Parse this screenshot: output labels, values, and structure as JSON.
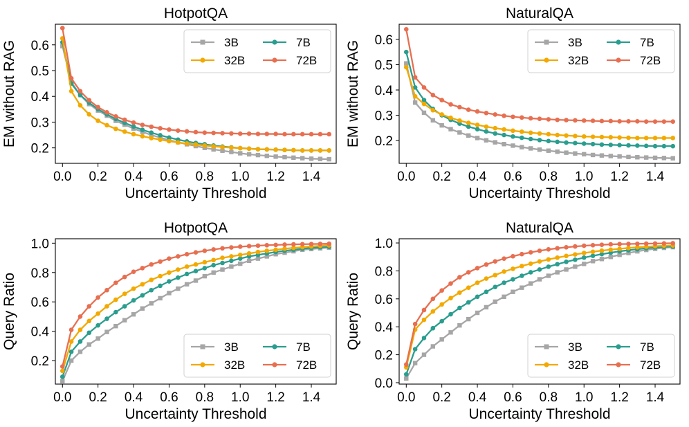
{
  "colors": {
    "3B": "#a6a6a6",
    "7B": "#2a9d8f",
    "32B": "#f2a900",
    "72B": "#e76f51"
  },
  "chart_data": [
    {
      "type": "line",
      "title": "HotpotQA",
      "xlabel": "Uncertainty Threshold",
      "ylabel": "EM without RAG",
      "xlim": [
        -0.04,
        1.54
      ],
      "ylim": [
        0.14,
        0.68
      ],
      "xticks": [
        "0.0",
        "0.2",
        "0.4",
        "0.6",
        "0.8",
        "1.0",
        "1.2",
        "1.4"
      ],
      "yticks": [
        "0.2",
        "0.3",
        "0.4",
        "0.5",
        "0.6"
      ],
      "legend": "top-right",
      "x": [
        0,
        0.05,
        0.1,
        0.15,
        0.2,
        0.25,
        0.3,
        0.35,
        0.4,
        0.45,
        0.5,
        0.55,
        0.6,
        0.65,
        0.7,
        0.75,
        0.8,
        0.85,
        0.9,
        0.95,
        1.0,
        1.05,
        1.1,
        1.15,
        1.2,
        1.25,
        1.3,
        1.35,
        1.4,
        1.45,
        1.5
      ],
      "series": [
        {
          "name": "3B",
          "marker": "square",
          "values": [
            0.595,
            0.455,
            0.405,
            0.37,
            0.345,
            0.325,
            0.305,
            0.29,
            0.275,
            0.262,
            0.25,
            0.24,
            0.23,
            0.222,
            0.214,
            0.207,
            0.2,
            0.194,
            0.189,
            0.184,
            0.179,
            0.175,
            0.172,
            0.169,
            0.166,
            0.164,
            0.162,
            0.16,
            0.158,
            0.157,
            0.156
          ]
        },
        {
          "name": "7B",
          "marker": "circle",
          "values": [
            0.61,
            0.45,
            0.405,
            0.375,
            0.35,
            0.33,
            0.312,
            0.297,
            0.283,
            0.27,
            0.259,
            0.249,
            0.24,
            0.232,
            0.225,
            0.219,
            0.214,
            0.209,
            0.205,
            0.202,
            0.199,
            0.197,
            0.195,
            0.194,
            0.193,
            0.192,
            0.191,
            0.19,
            0.19,
            0.19,
            0.19
          ]
        },
        {
          "name": "32B",
          "marker": "circle",
          "values": [
            0.625,
            0.42,
            0.365,
            0.33,
            0.305,
            0.288,
            0.274,
            0.263,
            0.253,
            0.245,
            0.238,
            0.232,
            0.226,
            0.221,
            0.217,
            0.213,
            0.209,
            0.206,
            0.203,
            0.201,
            0.199,
            0.197,
            0.195,
            0.194,
            0.193,
            0.192,
            0.191,
            0.19,
            0.19,
            0.19,
            0.19
          ]
        },
        {
          "name": "72B",
          "marker": "circle",
          "values": [
            0.665,
            0.47,
            0.42,
            0.385,
            0.358,
            0.338,
            0.322,
            0.309,
            0.298,
            0.289,
            0.282,
            0.276,
            0.271,
            0.267,
            0.264,
            0.261,
            0.259,
            0.258,
            0.257,
            0.256,
            0.255,
            0.255,
            0.254,
            0.254,
            0.254,
            0.253,
            0.253,
            0.253,
            0.253,
            0.253,
            0.253
          ]
        }
      ]
    },
    {
      "type": "line",
      "title": "NaturalQA",
      "xlabel": "Uncertainty Threshold",
      "ylabel": "EM without RAG",
      "xlim": [
        -0.04,
        1.54
      ],
      "ylim": [
        0.11,
        0.66
      ],
      "xticks": [
        "0.0",
        "0.2",
        "0.4",
        "0.6",
        "0.8",
        "1.0",
        "1.2",
        "1.4"
      ],
      "yticks": [
        "0.2",
        "0.3",
        "0.4",
        "0.5",
        "0.6"
      ],
      "legend": "top-right",
      "x": [
        0,
        0.05,
        0.1,
        0.15,
        0.2,
        0.25,
        0.3,
        0.35,
        0.4,
        0.45,
        0.5,
        0.55,
        0.6,
        0.65,
        0.7,
        0.75,
        0.8,
        0.85,
        0.9,
        0.95,
        1.0,
        1.05,
        1.1,
        1.15,
        1.2,
        1.25,
        1.3,
        1.35,
        1.4,
        1.45,
        1.5
      ],
      "series": [
        {
          "name": "3B",
          "marker": "square",
          "values": [
            0.505,
            0.35,
            0.31,
            0.28,
            0.26,
            0.245,
            0.232,
            0.22,
            0.21,
            0.201,
            0.193,
            0.186,
            0.18,
            0.174,
            0.169,
            0.164,
            0.16,
            0.156,
            0.152,
            0.149,
            0.146,
            0.143,
            0.141,
            0.139,
            0.137,
            0.135,
            0.134,
            0.133,
            0.132,
            0.131,
            0.13
          ]
        },
        {
          "name": "7B",
          "marker": "circle",
          "values": [
            0.55,
            0.41,
            0.36,
            0.325,
            0.3,
            0.282,
            0.267,
            0.255,
            0.245,
            0.236,
            0.228,
            0.222,
            0.216,
            0.211,
            0.206,
            0.202,
            0.198,
            0.195,
            0.192,
            0.19,
            0.188,
            0.186,
            0.184,
            0.183,
            0.182,
            0.181,
            0.18,
            0.179,
            0.178,
            0.178,
            0.178
          ]
        },
        {
          "name": "32B",
          "marker": "circle",
          "values": [
            0.49,
            0.375,
            0.345,
            0.32,
            0.303,
            0.29,
            0.279,
            0.27,
            0.262,
            0.255,
            0.249,
            0.244,
            0.239,
            0.235,
            0.231,
            0.228,
            0.225,
            0.222,
            0.22,
            0.218,
            0.216,
            0.215,
            0.214,
            0.213,
            0.212,
            0.211,
            0.21,
            0.21,
            0.21,
            0.21,
            0.21
          ]
        },
        {
          "name": "72B",
          "marker": "circle",
          "values": [
            0.64,
            0.45,
            0.41,
            0.38,
            0.36,
            0.343,
            0.332,
            0.322,
            0.315,
            0.309,
            0.303,
            0.298,
            0.294,
            0.291,
            0.288,
            0.286,
            0.284,
            0.282,
            0.281,
            0.28,
            0.279,
            0.278,
            0.277,
            0.277,
            0.276,
            0.276,
            0.276,
            0.275,
            0.275,
            0.275,
            0.275
          ]
        }
      ]
    },
    {
      "type": "line",
      "title": "HotpotQA",
      "xlabel": "Uncertainty Threshold",
      "ylabel": "Query Ratio",
      "xlim": [
        -0.04,
        1.54
      ],
      "ylim": [
        0.04,
        1.03
      ],
      "xticks": [
        "0.0",
        "0.2",
        "0.4",
        "0.6",
        "0.8",
        "1.0",
        "1.2",
        "1.4"
      ],
      "yticks": [
        "0.2",
        "0.4",
        "0.6",
        "0.8",
        "1.0"
      ],
      "legend": "bottom-right",
      "x": [
        0,
        0.05,
        0.1,
        0.15,
        0.2,
        0.25,
        0.3,
        0.35,
        0.4,
        0.45,
        0.5,
        0.55,
        0.6,
        0.65,
        0.7,
        0.75,
        0.8,
        0.85,
        0.9,
        0.95,
        1.0,
        1.05,
        1.1,
        1.15,
        1.2,
        1.25,
        1.3,
        1.35,
        1.4,
        1.45,
        1.5
      ],
      "series": [
        {
          "name": "3B",
          "marker": "square",
          "values": [
            0.06,
            0.2,
            0.26,
            0.31,
            0.35,
            0.395,
            0.435,
            0.475,
            0.515,
            0.555,
            0.59,
            0.625,
            0.66,
            0.69,
            0.72,
            0.745,
            0.775,
            0.8,
            0.82,
            0.84,
            0.86,
            0.88,
            0.895,
            0.91,
            0.925,
            0.935,
            0.945,
            0.955,
            0.96,
            0.965,
            0.97
          ]
        },
        {
          "name": "7B",
          "marker": "circle",
          "values": [
            0.09,
            0.26,
            0.33,
            0.39,
            0.44,
            0.485,
            0.53,
            0.57,
            0.61,
            0.645,
            0.68,
            0.71,
            0.74,
            0.765,
            0.79,
            0.81,
            0.83,
            0.85,
            0.865,
            0.88,
            0.895,
            0.91,
            0.92,
            0.93,
            0.94,
            0.948,
            0.955,
            0.962,
            0.968,
            0.972,
            0.975
          ]
        },
        {
          "name": "32B",
          "marker": "circle",
          "values": [
            0.13,
            0.33,
            0.41,
            0.47,
            0.52,
            0.57,
            0.615,
            0.655,
            0.69,
            0.72,
            0.75,
            0.775,
            0.8,
            0.82,
            0.84,
            0.855,
            0.87,
            0.885,
            0.9,
            0.91,
            0.92,
            0.93,
            0.94,
            0.948,
            0.955,
            0.962,
            0.968,
            0.973,
            0.978,
            0.982,
            0.985
          ]
        },
        {
          "name": "72B",
          "marker": "circle",
          "values": [
            0.16,
            0.41,
            0.5,
            0.57,
            0.63,
            0.68,
            0.73,
            0.77,
            0.805,
            0.83,
            0.855,
            0.875,
            0.895,
            0.91,
            0.925,
            0.937,
            0.948,
            0.957,
            0.965,
            0.971,
            0.976,
            0.98,
            0.983,
            0.986,
            0.988,
            0.99,
            0.992,
            0.993,
            0.994,
            0.995,
            0.996
          ]
        }
      ]
    },
    {
      "type": "line",
      "title": "NaturalQA",
      "xlabel": "Uncertainty Threshold",
      "ylabel": "Query Ratio",
      "xlim": [
        -0.04,
        1.54
      ],
      "ylim": [
        -0.01,
        1.03
      ],
      "xticks": [
        "0.0",
        "0.2",
        "0.4",
        "0.6",
        "0.8",
        "1.0",
        "1.2",
        "1.4"
      ],
      "yticks": [
        "0.0",
        "0.2",
        "0.4",
        "0.6",
        "0.8",
        "1.0"
      ],
      "legend": "bottom-right",
      "x": [
        0,
        0.05,
        0.1,
        0.15,
        0.2,
        0.25,
        0.3,
        0.35,
        0.4,
        0.45,
        0.5,
        0.55,
        0.6,
        0.65,
        0.7,
        0.75,
        0.8,
        0.85,
        0.9,
        0.95,
        1.0,
        1.05,
        1.1,
        1.15,
        1.2,
        1.25,
        1.3,
        1.35,
        1.4,
        1.45,
        1.5
      ],
      "series": [
        {
          "name": "3B",
          "marker": "square",
          "values": [
            0.03,
            0.14,
            0.2,
            0.26,
            0.31,
            0.36,
            0.41,
            0.455,
            0.5,
            0.54,
            0.58,
            0.615,
            0.65,
            0.68,
            0.71,
            0.74,
            0.765,
            0.79,
            0.81,
            0.83,
            0.85,
            0.87,
            0.885,
            0.9,
            0.915,
            0.928,
            0.94,
            0.95,
            0.958,
            0.965,
            0.97
          ]
        },
        {
          "name": "7B",
          "marker": "circle",
          "values": [
            0.06,
            0.24,
            0.32,
            0.39,
            0.44,
            0.49,
            0.535,
            0.575,
            0.615,
            0.65,
            0.685,
            0.715,
            0.74,
            0.765,
            0.79,
            0.81,
            0.83,
            0.848,
            0.865,
            0.88,
            0.895,
            0.908,
            0.92,
            0.93,
            0.94,
            0.948,
            0.955,
            0.962,
            0.968,
            0.972,
            0.975
          ]
        },
        {
          "name": "32B",
          "marker": "circle",
          "values": [
            0.11,
            0.38,
            0.45,
            0.51,
            0.56,
            0.605,
            0.645,
            0.68,
            0.715,
            0.745,
            0.77,
            0.795,
            0.815,
            0.835,
            0.852,
            0.868,
            0.882,
            0.895,
            0.907,
            0.918,
            0.928,
            0.937,
            0.945,
            0.952,
            0.958,
            0.964,
            0.969,
            0.973,
            0.977,
            0.98,
            0.982
          ]
        },
        {
          "name": "72B",
          "marker": "circle",
          "values": [
            0.13,
            0.42,
            0.52,
            0.6,
            0.66,
            0.71,
            0.755,
            0.79,
            0.82,
            0.845,
            0.868,
            0.888,
            0.905,
            0.92,
            0.933,
            0.944,
            0.954,
            0.962,
            0.969,
            0.975,
            0.98,
            0.984,
            0.987,
            0.99,
            0.992,
            0.993,
            0.994,
            0.995,
            0.996,
            0.997,
            0.998
          ]
        }
      ]
    }
  ]
}
